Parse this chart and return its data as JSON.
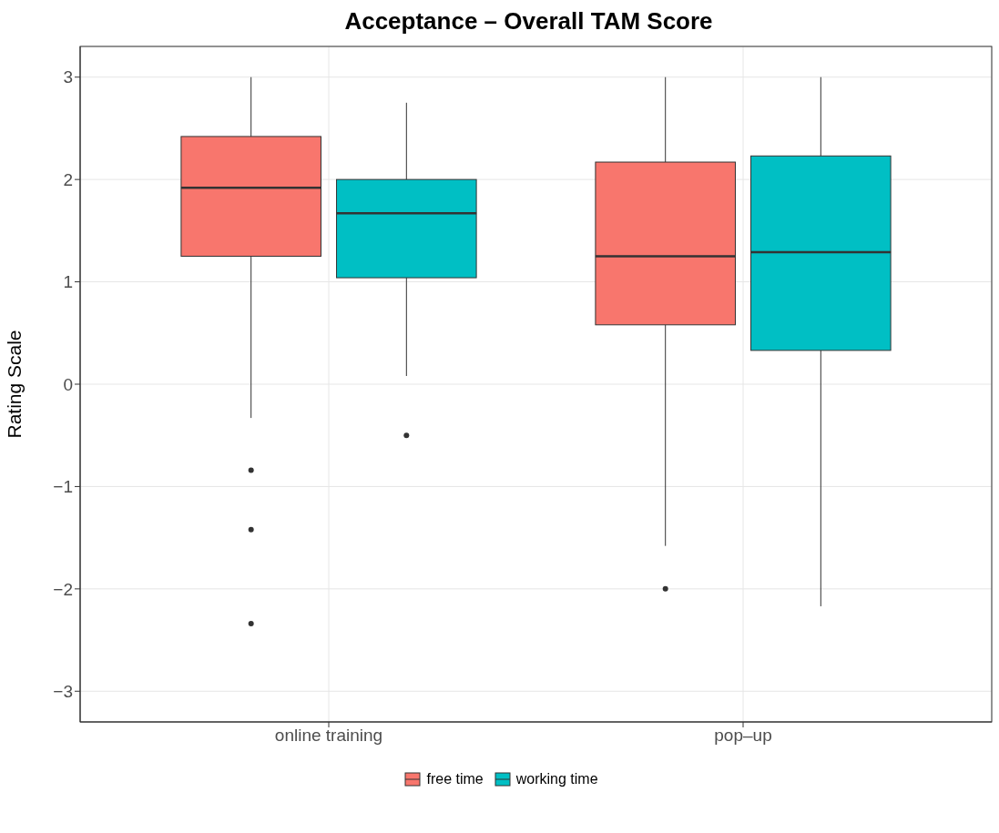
{
  "chart_data": {
    "type": "box",
    "title": "Acceptance – Overall TAM Score",
    "ylabel": "Rating Scale",
    "categories": [
      "online training",
      "pop–up"
    ],
    "series": [
      {
        "name": "free time",
        "color": "#f8766d",
        "boxes": [
          {
            "low": -0.33,
            "q1": 1.25,
            "median": 1.92,
            "q3": 2.42,
            "high": 3,
            "outliers": [
              -0.84,
              -1.42,
              -2.34
            ]
          },
          {
            "low": -1.58,
            "q1": 0.58,
            "median": 1.25,
            "q3": 2.17,
            "high": 3,
            "outliers": [
              -2
            ]
          }
        ]
      },
      {
        "name": "working time",
        "color": "#00bfc4",
        "boxes": [
          {
            "low": 0.08,
            "q1": 1.04,
            "median": 1.67,
            "q3": 2,
            "high": 2.75,
            "outliers": [
              -0.5
            ]
          },
          {
            "low": -2.17,
            "q1": 0.33,
            "median": 1.29,
            "q3": 2.23,
            "high": 3
          }
        ]
      }
    ],
    "ylim": [
      -3.3,
      3.3
    ],
    "yticks": [
      -3,
      -2,
      -1,
      0,
      1,
      2,
      3
    ],
    "grid": true,
    "legend": "bottom"
  }
}
